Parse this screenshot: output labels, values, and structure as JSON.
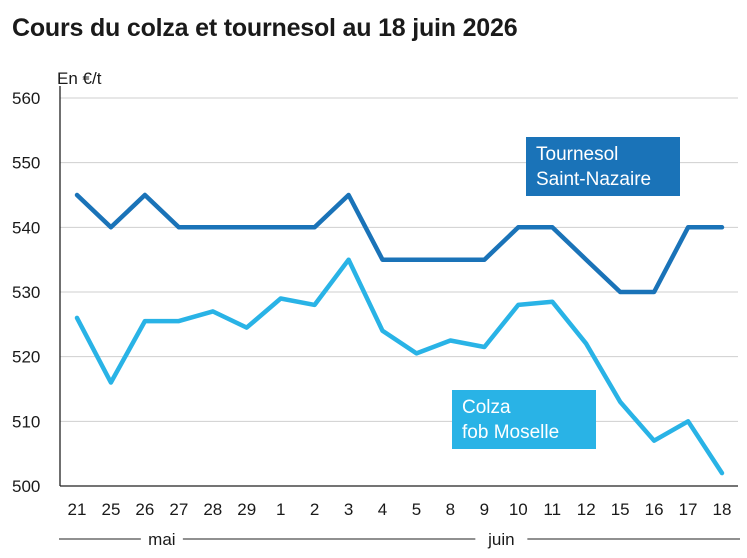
{
  "title": "Cours du colza et tournesol au 18 juin 2026",
  "chart_data": {
    "type": "line",
    "title": "Cours du colza et tournesol au 18 juin 2026",
    "ylabel": "En €/t",
    "xlabel": "",
    "ylim": [
      500,
      560
    ],
    "yticks": [
      500,
      510,
      520,
      530,
      540,
      550,
      560
    ],
    "grid": true,
    "categories": [
      "21",
      "25",
      "26",
      "27",
      "28",
      "29",
      "1",
      "2",
      "3",
      "4",
      "5",
      "8",
      "9",
      "10",
      "11",
      "12",
      "15",
      "16",
      "17",
      "18"
    ],
    "groups": [
      {
        "label": "mai",
        "from": 0,
        "to": 5
      },
      {
        "label": "juin",
        "from": 6,
        "to": 19
      }
    ],
    "series": [
      {
        "name": "Tournesol Saint-Nazaire",
        "label_lines": [
          "Tournesol",
          "Saint-Nazaire"
        ],
        "color": "#1a73b8",
        "values": [
          545,
          540,
          545,
          540,
          540,
          540,
          540,
          540,
          545,
          535,
          535,
          535,
          535,
          540,
          540,
          535,
          530,
          530,
          540,
          540
        ]
      },
      {
        "name": "Colza fob Moselle",
        "label_lines": [
          "Colza",
          "fob Moselle"
        ],
        "color": "#29b3e6",
        "values": [
          526,
          516,
          525.5,
          525.5,
          527,
          524.5,
          529,
          528,
          535,
          524,
          520.5,
          522.5,
          521.5,
          528,
          528.5,
          522,
          513,
          507,
          510,
          502
        ]
      }
    ]
  }
}
